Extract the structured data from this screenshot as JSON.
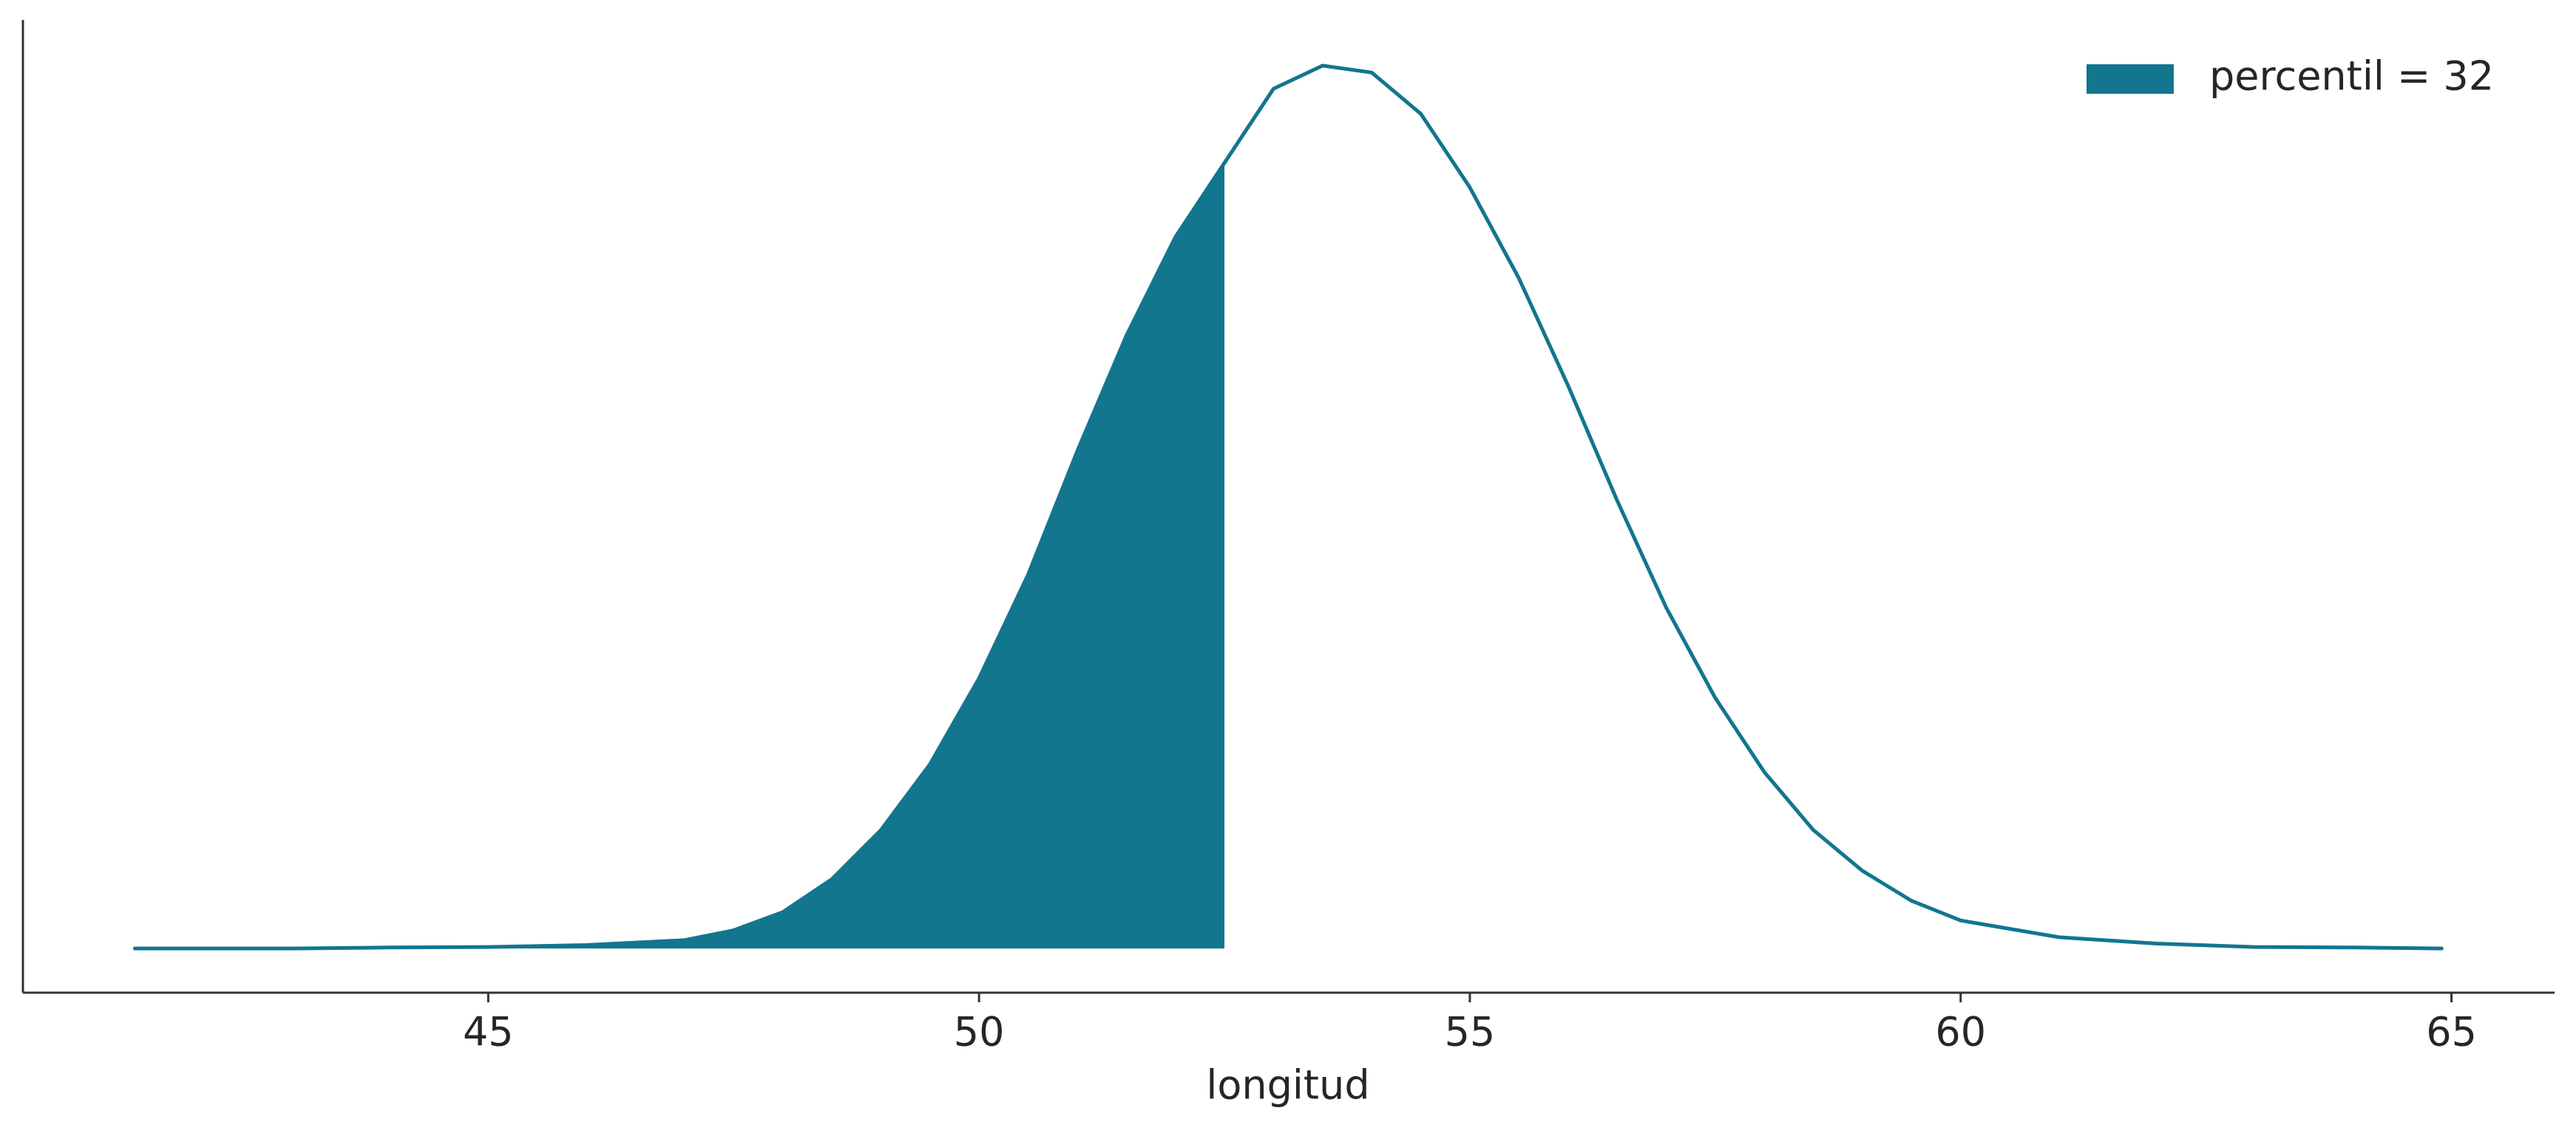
{
  "chart_data": {
    "type": "kde",
    "xlabel": "longitud",
    "series": [
      {
        "name": "percentil = 32",
        "color": "#12768f",
        "x": [
          41.4,
          42,
          43,
          44,
          45,
          46,
          47,
          47.5,
          48,
          48.5,
          49,
          49.5,
          50,
          50.5,
          51,
          51.5,
          52,
          52.5,
          53,
          53.5,
          54,
          54.5,
          55,
          55.5,
          56,
          56.5,
          57,
          57.5,
          58,
          58.5,
          59,
          59.5,
          60,
          61,
          62,
          63,
          64,
          64.9
        ],
        "values": [
          0,
          0,
          0,
          0.0002,
          0.0003,
          0.0007,
          0.0017,
          0.0037,
          0.0074,
          0.0141,
          0.0241,
          0.0375,
          0.055,
          0.0761,
          0.1012,
          0.1247,
          0.1448,
          0.1599,
          0.175,
          0.1797,
          0.1783,
          0.1699,
          0.1549,
          0.1364,
          0.1146,
          0.0912,
          0.0694,
          0.051,
          0.0359,
          0.0241,
          0.0158,
          0.0097,
          0.0057,
          0.0023,
          0.001,
          0.0003,
          0.0002,
          0
        ]
      }
    ],
    "shade_xmax": 52.5,
    "xlim": [
      40.26,
      66.05
    ],
    "xticks": [
      45,
      50,
      55,
      60,
      65
    ],
    "ylim": [
      -0.009,
      0.189
    ],
    "legend": "upper right"
  }
}
